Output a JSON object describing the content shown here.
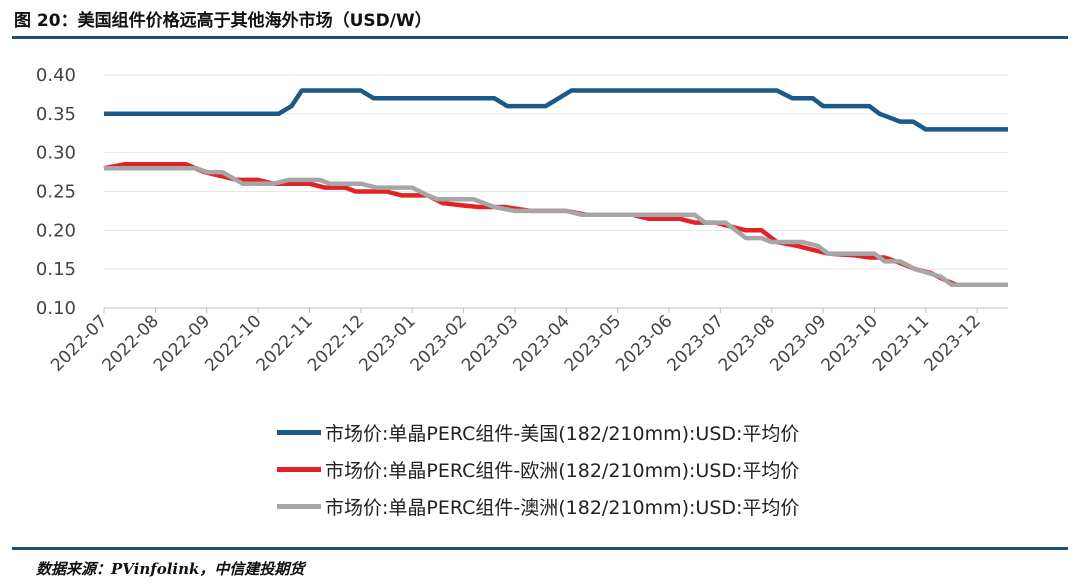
{
  "header": {
    "title": "图 20：美国组件价格远高于其他海外市场（USD/W）"
  },
  "footer": {
    "source": "数据来源：PVinfolink，中信建投期货"
  },
  "colors": {
    "us": "#1a5a8a",
    "eu": "#e32228",
    "au": "#a6a6a6",
    "rule": "#1f4e79"
  },
  "chart_data": {
    "type": "line",
    "ylim": [
      0.1,
      0.4
    ],
    "yticks": [
      "0.40",
      "0.35",
      "0.30",
      "0.25",
      "0.20",
      "0.15",
      "0.10"
    ],
    "xlim": [
      0,
      17.6
    ],
    "xtick_labels": [
      "2022-07",
      "2022-08",
      "2022-09",
      "2022-10",
      "2022-11",
      "2022-12",
      "2023-01",
      "2023-02",
      "2023-03",
      "2023-04",
      "2023-05",
      "2023-06",
      "2023-07",
      "2023-08",
      "2023-09",
      "2023-10",
      "2023-11",
      "2023-12"
    ],
    "legend_position": "bottom",
    "series": [
      {
        "name": "市场价:单晶PERC组件-美国(182/210mm):USD:平均价",
        "color": "#1a5a8a",
        "points": [
          [
            0,
            0.35
          ],
          [
            3.4,
            0.35
          ],
          [
            3.65,
            0.36
          ],
          [
            3.85,
            0.38
          ],
          [
            5.0,
            0.38
          ],
          [
            5.25,
            0.37
          ],
          [
            7.6,
            0.37
          ],
          [
            7.85,
            0.36
          ],
          [
            8.6,
            0.36
          ],
          [
            8.85,
            0.37
          ],
          [
            9.1,
            0.38
          ],
          [
            13.1,
            0.38
          ],
          [
            13.4,
            0.37
          ],
          [
            13.8,
            0.37
          ],
          [
            14.0,
            0.36
          ],
          [
            14.9,
            0.36
          ],
          [
            15.1,
            0.35
          ],
          [
            15.5,
            0.34
          ],
          [
            15.75,
            0.34
          ],
          [
            16.0,
            0.33
          ],
          [
            17.6,
            0.33
          ]
        ]
      },
      {
        "name": "市场价:单晶PERC组件-欧洲(182/210mm):USD:平均价",
        "color": "#e32228",
        "points": [
          [
            0,
            0.28
          ],
          [
            0.4,
            0.285
          ],
          [
            1.6,
            0.285
          ],
          [
            1.95,
            0.275
          ],
          [
            2.6,
            0.265
          ],
          [
            3.0,
            0.265
          ],
          [
            3.3,
            0.26
          ],
          [
            4.0,
            0.26
          ],
          [
            4.3,
            0.255
          ],
          [
            4.7,
            0.255
          ],
          [
            4.9,
            0.25
          ],
          [
            5.5,
            0.25
          ],
          [
            5.8,
            0.245
          ],
          [
            6.3,
            0.245
          ],
          [
            6.6,
            0.235
          ],
          [
            7.0,
            0.232
          ],
          [
            7.3,
            0.23
          ],
          [
            7.8,
            0.23
          ],
          [
            8.3,
            0.225
          ],
          [
            9.0,
            0.225
          ],
          [
            9.4,
            0.22
          ],
          [
            10.3,
            0.22
          ],
          [
            10.6,
            0.215
          ],
          [
            11.2,
            0.215
          ],
          [
            11.5,
            0.21
          ],
          [
            11.9,
            0.21
          ],
          [
            12.2,
            0.205
          ],
          [
            12.5,
            0.2
          ],
          [
            12.8,
            0.2
          ],
          [
            13.1,
            0.185
          ],
          [
            13.5,
            0.18
          ],
          [
            13.8,
            0.175
          ],
          [
            14.1,
            0.17
          ],
          [
            14.6,
            0.168
          ],
          [
            14.9,
            0.165
          ],
          [
            15.2,
            0.165
          ],
          [
            15.5,
            0.158
          ],
          [
            15.8,
            0.15
          ],
          [
            16.1,
            0.145
          ],
          [
            16.4,
            0.135
          ],
          [
            16.6,
            0.13
          ],
          [
            17.6,
            0.13
          ]
        ]
      },
      {
        "name": "市场价:单晶PERC组件-澳洲(182/210mm):USD:平均价",
        "color": "#a6a6a6",
        "points": [
          [
            0,
            0.28
          ],
          [
            1.8,
            0.28
          ],
          [
            2.0,
            0.275
          ],
          [
            2.3,
            0.275
          ],
          [
            2.7,
            0.26
          ],
          [
            3.3,
            0.26
          ],
          [
            3.6,
            0.265
          ],
          [
            4.2,
            0.265
          ],
          [
            4.4,
            0.26
          ],
          [
            5.0,
            0.26
          ],
          [
            5.3,
            0.255
          ],
          [
            6.0,
            0.255
          ],
          [
            6.3,
            0.245
          ],
          [
            6.5,
            0.24
          ],
          [
            7.2,
            0.24
          ],
          [
            7.6,
            0.23
          ],
          [
            8.0,
            0.225
          ],
          [
            9.0,
            0.225
          ],
          [
            9.3,
            0.22
          ],
          [
            10.0,
            0.22
          ],
          [
            10.2,
            0.22
          ],
          [
            11.5,
            0.22
          ],
          [
            11.7,
            0.21
          ],
          [
            12.1,
            0.21
          ],
          [
            12.5,
            0.19
          ],
          [
            12.8,
            0.19
          ],
          [
            13.0,
            0.185
          ],
          [
            13.6,
            0.185
          ],
          [
            13.9,
            0.18
          ],
          [
            14.1,
            0.17
          ],
          [
            15.0,
            0.17
          ],
          [
            15.2,
            0.16
          ],
          [
            15.5,
            0.16
          ],
          [
            15.8,
            0.15
          ],
          [
            16.3,
            0.14
          ],
          [
            16.5,
            0.13
          ],
          [
            17.6,
            0.13
          ]
        ]
      }
    ]
  }
}
